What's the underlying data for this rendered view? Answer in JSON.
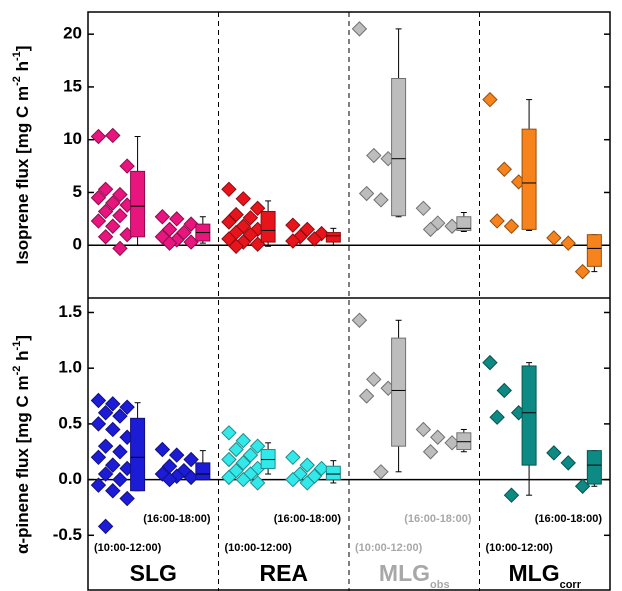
{
  "chart_data": {
    "type": "scatter-box",
    "groups": [
      {
        "name": "SLG",
        "label_color": "#000000",
        "periods": [
          "(10:00-12:00)",
          "(16:00-18:00)"
        ]
      },
      {
        "name": "REA",
        "label_color": "#000000",
        "periods": [
          "(10:00-12:00)",
          "(16:00-18:00)"
        ]
      },
      {
        "name": "MLG",
        "sub": "obs",
        "label_color": "#a8a8a8",
        "periods": [
          "(10:00-12:00)",
          "(16:00-18:00)"
        ]
      },
      {
        "name": "MLG",
        "sub": "corr",
        "label_color": "#000000",
        "periods": [
          "(10:00-12:00)",
          "(16:00-18:00)"
        ]
      }
    ],
    "panels": [
      {
        "ylabel": [
          "Isoprene flux [mg C m",
          "-2",
          " h",
          "-1",
          "]"
        ],
        "ylim": [
          -5,
          22.1
        ],
        "yticks": [
          0,
          5,
          10,
          15,
          20
        ],
        "colors": [
          "#e8157f",
          "#e8141c",
          "#bdbdbd",
          "#f7831c"
        ],
        "data": [
          [
            {
              "points": [
                10.3,
                10.4,
                7.5,
                5.3,
                4.8,
                4.5,
                4.0,
                3.8,
                3.2,
                2.8,
                2.3,
                1.8,
                1.0,
                0.8,
                -0.3
              ],
              "box": {
                "low": 0,
                "q1": 0.8,
                "median": 3.7,
                "q3": 7.0,
                "high": 10.3
              }
            },
            {
              "points": [
                2.7,
                2.5,
                2.0,
                1.5,
                1.2,
                0.8,
                0.5,
                0.3,
                0.2
              ],
              "box": {
                "low": 0.2,
                "q1": 0.4,
                "median": 1.2,
                "q3": 2.0,
                "high": 2.7
              }
            }
          ],
          [
            {
              "points": [
                5.3,
                4.4,
                3.5,
                2.9,
                2.6,
                2.2,
                1.8,
                1.5,
                1.2,
                1.0,
                0.6,
                0.3,
                0.1,
                -0.1
              ],
              "box": {
                "low": -0.1,
                "q1": 0.3,
                "median": 1.4,
                "q3": 3.2,
                "high": 4.2
              }
            },
            {
              "points": [
                1.9,
                1.5,
                1.1,
                0.8,
                0.6,
                0.4
              ],
              "box": {
                "low": 0,
                "q1": 0.3,
                "median": 0.9,
                "q3": 1.2,
                "high": 1.6
              }
            }
          ],
          [
            {
              "points": [
                20.5,
                8.5,
                8.2,
                4.9,
                4.3
              ],
              "box": {
                "low": 2.7,
                "q1": 2.8,
                "median": 8.2,
                "q3": 15.8,
                "high": 20.5
              }
            },
            {
              "points": [
                3.5,
                2.1,
                1.8,
                1.5
              ],
              "box": {
                "low": 1.3,
                "q1": 1.4,
                "median": 1.6,
                "q3": 2.7,
                "high": 3.1
              }
            }
          ],
          [
            {
              "points": [
                13.8,
                7.2,
                6.0,
                2.3,
                1.8
              ],
              "box": {
                "low": 1.4,
                "q1": 1.5,
                "median": 5.9,
                "q3": 11.0,
                "high": 13.8
              }
            },
            {
              "points": [
                0.7,
                0.2,
                -2.5
              ],
              "box": {
                "low": -2.5,
                "q1": -2.0,
                "median": -0.3,
                "q3": 1.0,
                "high": 1.0
              }
            }
          ]
        ]
      },
      {
        "ylabel": [
          "α-pinene flux [mg C m",
          "-2",
          " h",
          "-1",
          "]"
        ],
        "ylim": [
          -1.0,
          1.63
        ],
        "yticks": [
          -0.5,
          {
            "value": 0,
            "label": "0.0"
          },
          0.5,
          {
            "value": 1,
            "label": "1.0"
          },
          1.5
        ],
        "colors": [
          "#1c1cd6",
          "#33e8e8",
          "#bdbdbd",
          "#0e8a84"
        ],
        "data": [
          [
            {
              "points": [
                0.71,
                0.68,
                0.65,
                0.6,
                0.57,
                0.5,
                0.45,
                0.38,
                0.3,
                0.25,
                0.2,
                0.13,
                0.1,
                0.05,
                0.0,
                -0.05,
                -0.1,
                -0.17,
                -0.42
              ],
              "box": {
                "low": -0.1,
                "q1": -0.1,
                "median": 0.2,
                "q3": 0.55,
                "high": 0.69
              }
            },
            {
              "points": [
                0.27,
                0.22,
                0.18,
                0.12,
                0.08,
                0.05,
                0.03,
                0.02,
                0.0
              ],
              "box": {
                "low": 0,
                "q1": 0,
                "median": 0.05,
                "q3": 0.15,
                "high": 0.26
              }
            }
          ],
          [
            {
              "points": [
                0.42,
                0.35,
                0.3,
                0.27,
                0.22,
                0.18,
                0.15,
                0.1,
                0.08,
                0.05,
                0.02,
                0.0,
                -0.03
              ],
              "box": {
                "low": 0.05,
                "q1": 0.1,
                "median": 0.18,
                "q3": 0.27,
                "high": 0.33
              }
            },
            {
              "points": [
                0.2,
                0.13,
                0.1,
                0.05,
                0.03,
                0.0,
                -0.03
              ],
              "box": {
                "low": -0.03,
                "q1": 0.0,
                "median": 0.05,
                "q3": 0.12,
                "high": 0.17
              }
            }
          ],
          [
            {
              "points": [
                1.43,
                0.9,
                0.82,
                0.75,
                0.07
              ],
              "box": {
                "low": 0.07,
                "q1": 0.3,
                "median": 0.8,
                "q3": 1.27,
                "high": 1.43
              }
            },
            {
              "points": [
                0.45,
                0.38,
                0.33,
                0.25
              ],
              "box": {
                "low": 0.25,
                "q1": 0.27,
                "median": 0.34,
                "q3": 0.42,
                "high": 0.45
              }
            }
          ],
          [
            {
              "points": [
                1.05,
                0.8,
                0.6,
                0.56,
                -0.14
              ],
              "box": {
                "low": -0.14,
                "q1": 0.13,
                "median": 0.6,
                "q3": 1.02,
                "high": 1.05
              }
            },
            {
              "points": [
                0.24,
                0.15,
                -0.06
              ],
              "box": {
                "low": -0.06,
                "q1": -0.04,
                "median": 0.13,
                "q3": 0.26,
                "high": 0.26
              }
            }
          ]
        ]
      }
    ]
  }
}
